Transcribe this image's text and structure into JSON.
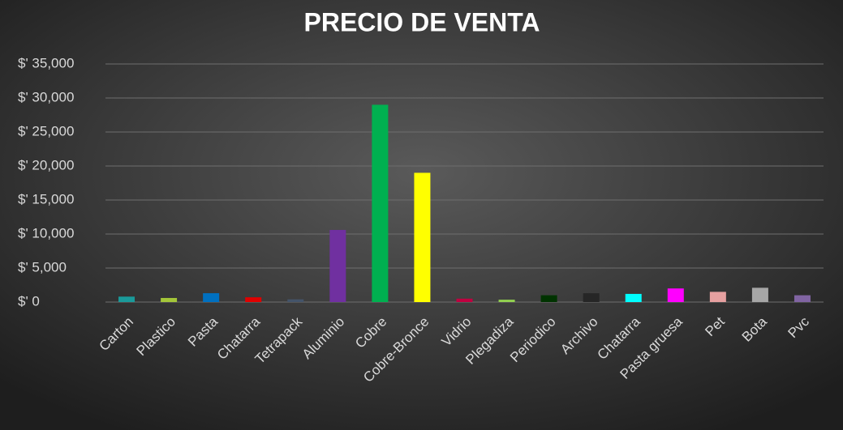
{
  "chart_data": {
    "type": "bar",
    "title": "PRECIO DE VENTA",
    "categories": [
      "Carton",
      "Plastico",
      "Pasta",
      "Chatarra",
      "Tetrapack",
      "Aluminio",
      "Cobre",
      "Cobre-Bronce",
      "Vidrio",
      "Plegadiza",
      "Periodico",
      "Archivo",
      "Chatarra",
      "Pasta gruesa",
      "Pet",
      "Bota",
      "Pvc"
    ],
    "values": [
      800,
      600,
      1300,
      700,
      400,
      10600,
      29000,
      19000,
      500,
      350,
      1000,
      1300,
      1200,
      2000,
      1500,
      2100,
      1000
    ],
    "colors": [
      "#1a9a9a",
      "#a4c639",
      "#0070c0",
      "#e00000",
      "#44546a",
      "#7030a0",
      "#00b050",
      "#ffff00",
      "#c00040",
      "#92d050",
      "#003300",
      "#262626",
      "#00ffff",
      "#ff00ff",
      "#e6a0a0",
      "#a6a6a6",
      "#8064a2"
    ],
    "ylim": [
      0,
      35000
    ],
    "yticks": [
      {
        "value": 0,
        "label": "$' 0"
      },
      {
        "value": 5000,
        "label": "$' 5,000"
      },
      {
        "value": 10000,
        "label": "$' 10,000"
      },
      {
        "value": 15000,
        "label": "$' 15,000"
      },
      {
        "value": 20000,
        "label": "$' 20,000"
      },
      {
        "value": 25000,
        "label": "$' 25,000"
      },
      {
        "value": 30000,
        "label": "$' 30,000"
      },
      {
        "value": 35000,
        "label": "$' 35,000"
      }
    ],
    "grid": true
  }
}
